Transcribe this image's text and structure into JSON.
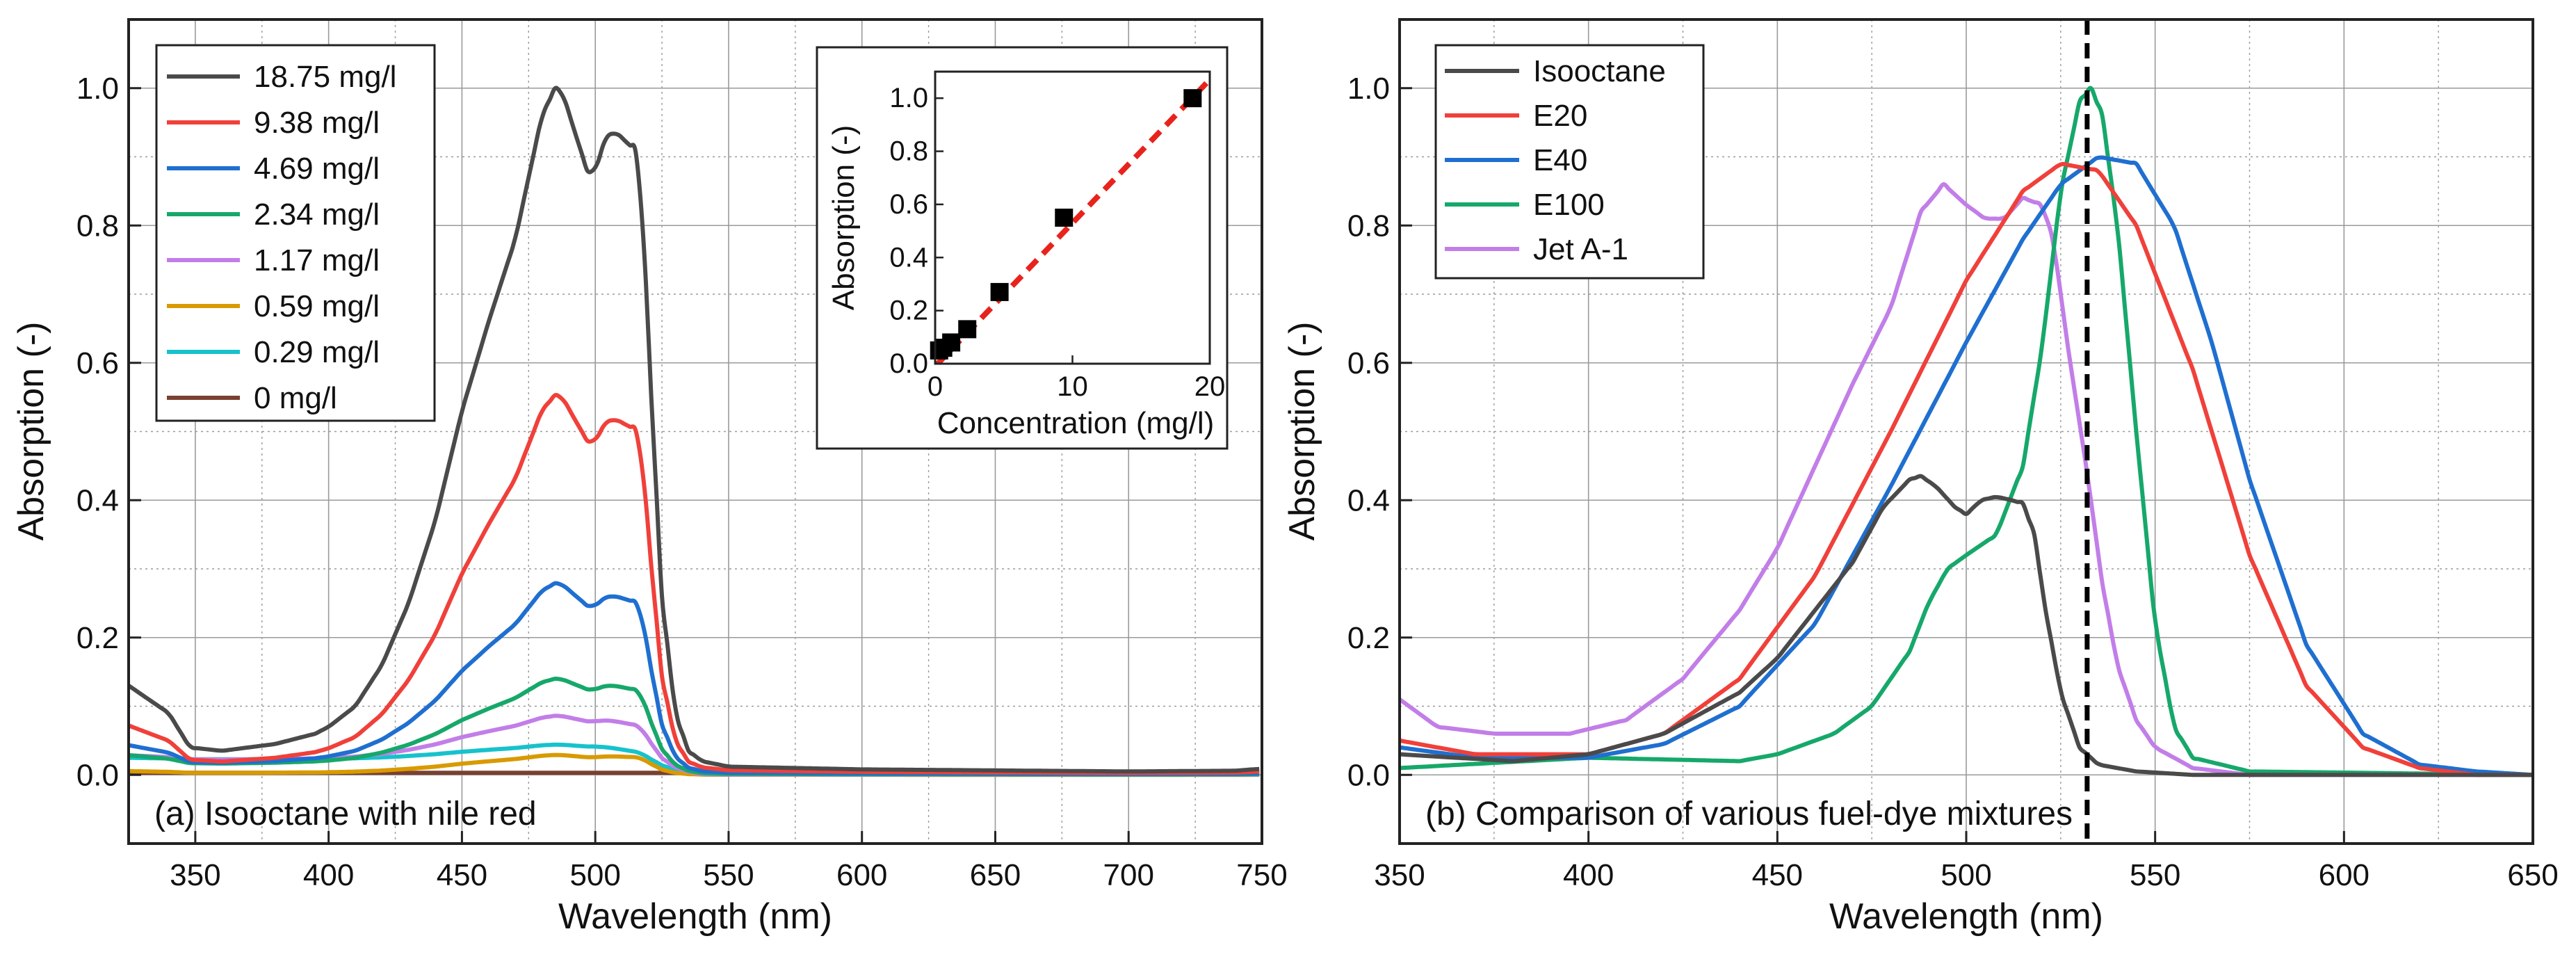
{
  "chart_data": [
    {
      "type": "line",
      "id": "a",
      "annotation": "(a) Isooctane with nile red",
      "xlabel": "Wavelength (nm)",
      "ylabel": "Absorption (-)",
      "xlim": [
        325,
        750
      ],
      "ylim": [
        -0.1,
        1.1
      ],
      "xticks": [
        350,
        400,
        450,
        500,
        550,
        600,
        650,
        700,
        750
      ],
      "xtick_labels": [
        "350",
        "400",
        "450",
        "500",
        "550",
        "600",
        "650",
        "700",
        "750"
      ],
      "yticks": [
        0.0,
        0.2,
        0.4,
        0.6,
        0.8,
        1.0
      ],
      "ytick_labels": [
        "0.0",
        "0.2",
        "0.4",
        "0.6",
        "0.8",
        "1.0"
      ],
      "grid": true,
      "legend_position": "top-left",
      "series": [
        {
          "name": "18.75 mg/l",
          "color": "#4a4a4a",
          "shape": "isooctane",
          "scale": 1.0,
          "baseline": 0.0
        },
        {
          "name": "9.38 mg/l",
          "color": "#f0403a",
          "shape": "isooctane",
          "scale": 0.553,
          "baseline": 0.0
        },
        {
          "name": "4.69 mg/l",
          "color": "#1f6fd0",
          "shape": "isooctane",
          "scale": 0.271,
          "baseline": 0.008
        },
        {
          "name": "2.34 mg/l",
          "color": "#16a86a",
          "shape": "isooctane",
          "scale": 0.128,
          "baseline": 0.012
        },
        {
          "name": "1.17 mg/l",
          "color": "#c27ee8",
          "shape": "isooctane",
          "scale": 0.066,
          "baseline": 0.02
        },
        {
          "name": "0.59 mg/l",
          "color": "#d99a00",
          "shape": "isooctane",
          "scale": 0.027,
          "baseline": 0.002
        },
        {
          "name": "0.29 mg/l",
          "color": "#16c2cc",
          "shape": "isooctane",
          "scale": 0.022,
          "baseline": 0.022
        },
        {
          "name": "0 mg/l",
          "color": "#7a4030",
          "shape": "flat",
          "scale": 0.0,
          "baseline": 0.0
        }
      ],
      "isooctane_shape": {
        "x": [
          325,
          340,
          348,
          360,
          380,
          395,
          400,
          410,
          420,
          430,
          440,
          450,
          460,
          470,
          475,
          480,
          485,
          488,
          492,
          497,
          500,
          504,
          508,
          512,
          515,
          518,
          521,
          525,
          530,
          535,
          540,
          550,
          600,
          700,
          740,
          750
        ],
        "y": [
          0.13,
          0.09,
          0.04,
          0.035,
          0.045,
          0.06,
          0.07,
          0.1,
          0.16,
          0.25,
          0.37,
          0.53,
          0.66,
          0.78,
          0.87,
          0.96,
          1.0,
          0.99,
          0.94,
          0.88,
          0.88,
          0.93,
          0.935,
          0.92,
          0.91,
          0.8,
          0.55,
          0.26,
          0.09,
          0.035,
          0.02,
          0.012,
          0.008,
          0.005,
          0.006,
          0.009
        ]
      },
      "inset": {
        "type": "scatter",
        "xlabel": "Concentration (mg/l)",
        "ylabel": "Absorption (-)",
        "xlim": [
          0,
          20
        ],
        "ylim": [
          0,
          1.1
        ],
        "xticks": [
          0,
          10,
          20
        ],
        "xtick_labels": [
          "0",
          "10",
          "20"
        ],
        "yticks": [
          0.0,
          0.2,
          0.4,
          0.6,
          0.8,
          1.0
        ],
        "ytick_labels": [
          "0.0",
          "0.2",
          "0.4",
          "0.6",
          "0.8",
          "1.0"
        ],
        "points": {
          "x": [
            0.29,
            0.59,
            1.17,
            2.34,
            4.69,
            9.38,
            18.75
          ],
          "y": [
            0.05,
            0.06,
            0.08,
            0.13,
            0.27,
            0.55,
            1.0
          ]
        },
        "fit": {
          "x": [
            0,
            20
          ],
          "y": [
            -0.01,
            1.07
          ],
          "color": "#e8231c",
          "style": "dashed"
        },
        "marker_color": "#000000"
      }
    },
    {
      "type": "line",
      "id": "b",
      "annotation": "(b) Comparison of various fuel-dye mixtures",
      "xlabel": "Wavelength (nm)",
      "ylabel": "Absorption (-)",
      "xlim": [
        350,
        650
      ],
      "ylim": [
        -0.1,
        1.1
      ],
      "xticks": [
        350,
        400,
        450,
        500,
        550,
        600,
        650
      ],
      "xtick_labels": [
        "350",
        "400",
        "450",
        "500",
        "550",
        "600",
        "650"
      ],
      "yticks": [
        0.0,
        0.2,
        0.4,
        0.6,
        0.8,
        1.0
      ],
      "ytick_labels": [
        "0.0",
        "0.2",
        "0.4",
        "0.6",
        "0.8",
        "1.0"
      ],
      "grid": true,
      "legend_position": "top-left",
      "reference_line": {
        "x": 532,
        "color": "#000000",
        "style": "dashed"
      },
      "series": [
        {
          "name": "Isooctane",
          "color": "#4a4a4a",
          "x": [
            350,
            380,
            400,
            420,
            440,
            450,
            460,
            470,
            478,
            485,
            488,
            492,
            497,
            500,
            504,
            508,
            512,
            515,
            518,
            521,
            525,
            530,
            535,
            545,
            560,
            600,
            650
          ],
          "y": [
            0.03,
            0.02,
            0.03,
            0.06,
            0.12,
            0.17,
            0.24,
            0.31,
            0.39,
            0.43,
            0.435,
            0.42,
            0.39,
            0.38,
            0.4,
            0.405,
            0.4,
            0.395,
            0.35,
            0.24,
            0.12,
            0.04,
            0.015,
            0.005,
            0.0,
            0.0,
            0.0
          ]
        },
        {
          "name": "E20",
          "color": "#f0403a",
          "x": [
            350,
            370,
            400,
            420,
            440,
            460,
            480,
            500,
            515,
            525,
            535,
            545,
            560,
            575,
            590,
            605,
            620,
            635,
            650
          ],
          "y": [
            0.05,
            0.03,
            0.03,
            0.06,
            0.14,
            0.29,
            0.5,
            0.72,
            0.85,
            0.89,
            0.88,
            0.8,
            0.59,
            0.32,
            0.13,
            0.04,
            0.01,
            0.0,
            0.0
          ]
        },
        {
          "name": "E40",
          "color": "#1f6fd0",
          "x": [
            350,
            370,
            400,
            420,
            440,
            460,
            480,
            500,
            515,
            525,
            535,
            545,
            555,
            565,
            575,
            590,
            605,
            620,
            635,
            650
          ],
          "y": [
            0.04,
            0.025,
            0.025,
            0.045,
            0.1,
            0.22,
            0.42,
            0.63,
            0.78,
            0.86,
            0.9,
            0.89,
            0.8,
            0.63,
            0.43,
            0.19,
            0.06,
            0.015,
            0.005,
            0.0
          ]
        },
        {
          "name": "E100",
          "color": "#16a86a",
          "x": [
            350,
            400,
            440,
            450,
            465,
            475,
            485,
            490,
            495,
            500,
            508,
            515,
            520,
            525,
            530,
            533,
            536,
            540,
            545,
            550,
            555,
            560,
            575,
            650
          ],
          "y": [
            0.01,
            0.025,
            0.02,
            0.03,
            0.06,
            0.1,
            0.18,
            0.25,
            0.3,
            0.32,
            0.35,
            0.45,
            0.62,
            0.85,
            0.98,
            1.0,
            0.96,
            0.8,
            0.5,
            0.22,
            0.07,
            0.025,
            0.005,
            0.0
          ]
        },
        {
          "name": "Jet A-1",
          "color": "#c27ee8",
          "x": [
            350,
            360,
            375,
            395,
            410,
            425,
            440,
            450,
            460,
            470,
            480,
            488,
            494,
            500,
            505,
            510,
            515,
            520,
            523,
            527,
            532,
            536,
            540,
            545,
            550,
            560,
            575,
            650
          ],
          "y": [
            0.11,
            0.07,
            0.06,
            0.06,
            0.08,
            0.14,
            0.24,
            0.33,
            0.45,
            0.57,
            0.68,
            0.82,
            0.86,
            0.83,
            0.81,
            0.81,
            0.84,
            0.83,
            0.78,
            0.62,
            0.44,
            0.28,
            0.16,
            0.08,
            0.04,
            0.01,
            0.0,
            0.0
          ]
        }
      ]
    }
  ]
}
